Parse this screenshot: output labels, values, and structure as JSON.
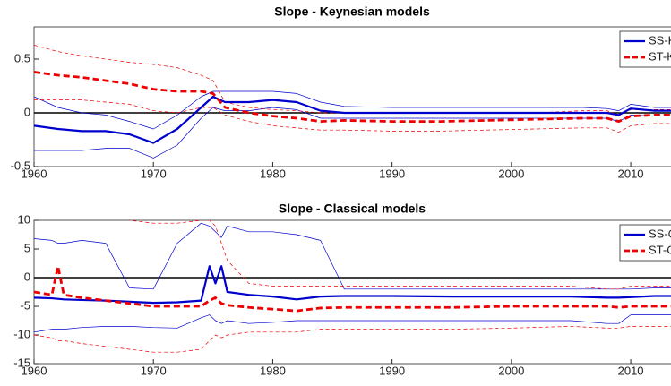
{
  "chart_data": [
    {
      "type": "line",
      "title": "Slope - Keynesian models",
      "x": [
        1960,
        1962,
        1964,
        1966,
        1968,
        1970,
        1972,
        1974,
        1975,
        1976,
        1978,
        1980,
        1982,
        1984,
        1986,
        1990,
        1994,
        1998,
        2002,
        2006,
        2008,
        2009,
        2010,
        2012,
        2014,
        2016
      ],
      "series": [
        {
          "color": "#0000cc",
          "linewidth": 0.7,
          "dashed": false,
          "values": [
            0.15,
            0.05,
            0.0,
            -0.02,
            -0.08,
            -0.15,
            -0.02,
            0.15,
            0.2,
            0.2,
            0.2,
            0.2,
            0.18,
            0.1,
            0.06,
            0.05,
            0.05,
            0.05,
            0.05,
            0.05,
            0.04,
            0.02,
            0.08,
            0.05,
            0.05,
            0.05
          ]
        },
        {
          "color": "#0000cc",
          "linewidth": 0.7,
          "dashed": false,
          "values": [
            -0.35,
            -0.35,
            -0.35,
            -0.33,
            -0.33,
            -0.42,
            -0.3,
            -0.05,
            0.05,
            0.02,
            0.02,
            0.05,
            0.03,
            -0.05,
            -0.05,
            -0.05,
            -0.05,
            -0.05,
            -0.05,
            -0.05,
            -0.05,
            -0.08,
            -0.02,
            -0.03,
            -0.03,
            -0.03
          ]
        },
        {
          "color": "#ee0000",
          "linewidth": 0.7,
          "dashed": true,
          "values": [
            0.63,
            0.57,
            0.53,
            0.5,
            0.47,
            0.45,
            0.42,
            0.35,
            0.3,
            0.1,
            0.05,
            0.03,
            0.02,
            0.0,
            0.0,
            0.0,
            0.0,
            0.0,
            0.0,
            0.02,
            0.02,
            -0.02,
            0.03,
            0.03,
            0.03,
            0.03
          ]
        },
        {
          "color": "#ee0000",
          "linewidth": 0.7,
          "dashed": true,
          "values": [
            0.12,
            0.12,
            0.12,
            0.1,
            0.08,
            0.02,
            0.0,
            0.05,
            0.05,
            -0.02,
            -0.08,
            -0.12,
            -0.14,
            -0.16,
            -0.16,
            -0.17,
            -0.17,
            -0.16,
            -0.15,
            -0.14,
            -0.14,
            -0.18,
            -0.12,
            -0.1,
            -0.1,
            -0.1
          ]
        },
        {
          "name": "SS-K",
          "color": "#0000cc",
          "linewidth": 2.2,
          "dashed": false,
          "values": [
            -0.12,
            -0.15,
            -0.17,
            -0.17,
            -0.2,
            -0.28,
            -0.15,
            0.05,
            0.15,
            0.1,
            0.1,
            0.12,
            0.1,
            0.02,
            0.0,
            0.0,
            0.0,
            0.0,
            0.0,
            0.0,
            0.0,
            -0.02,
            0.04,
            0.02,
            0.02,
            0.02
          ]
        },
        {
          "name": "ST-K",
          "color": "#ee0000",
          "linewidth": 2.8,
          "dashed": true,
          "values": [
            0.38,
            0.35,
            0.33,
            0.3,
            0.27,
            0.22,
            0.2,
            0.2,
            0.18,
            0.05,
            0.0,
            -0.03,
            -0.05,
            -0.08,
            -0.07,
            -0.08,
            -0.08,
            -0.07,
            -0.06,
            -0.05,
            -0.05,
            -0.08,
            -0.03,
            -0.02,
            -0.02,
            -0.02
          ]
        }
      ],
      "reference_line": 0,
      "xlim": [
        1960,
        2016
      ],
      "xticks": [
        1960,
        1970,
        1980,
        1990,
        2000,
        2010
      ],
      "ylim": [
        -0.5,
        0.8
      ],
      "yticks": [
        -0.5,
        0,
        0.5
      ],
      "legend": "northeast"
    },
    {
      "type": "line",
      "title": "Slope - Classical models",
      "x": [
        1960,
        1961.5,
        1962,
        1962.5,
        1964,
        1966,
        1968,
        1970,
        1972,
        1974,
        1974.7,
        1975.2,
        1975.7,
        1976.2,
        1978,
        1980,
        1982,
        1984,
        1986,
        1990,
        1995,
        2000,
        2005,
        2008,
        2009,
        2010,
        2012,
        2014,
        2016
      ],
      "series": [
        {
          "color": "#0000cc",
          "linewidth": 0.7,
          "dashed": false,
          "values": [
            6.8,
            6.5,
            6,
            6,
            6.5,
            6,
            -1.8,
            -2,
            6,
            9.5,
            9,
            8,
            7,
            9,
            8,
            8,
            7.5,
            6.5,
            -2,
            -2,
            -2,
            -2,
            -2,
            -2,
            -2,
            -2,
            -1.8,
            -1.8,
            -1.8
          ]
        },
        {
          "color": "#0000cc",
          "linewidth": 0.7,
          "dashed": false,
          "values": [
            -9.5,
            -9,
            -9,
            -9,
            -8.7,
            -8.5,
            -8.5,
            -8.7,
            -8.8,
            -7,
            -6.5,
            -7.5,
            -8,
            -7.5,
            -8,
            -7.8,
            -7.5,
            -7.5,
            -7.5,
            -7.5,
            -7.5,
            -7.5,
            -7.5,
            -8,
            -8,
            -6.5,
            -6.5,
            -6.5,
            -6.5
          ]
        },
        {
          "color": "#ee0000",
          "linewidth": 0.7,
          "dashed": true,
          "values": [
            12,
            12,
            12,
            12,
            12,
            11,
            10,
            9.5,
            9.5,
            10,
            10,
            9,
            6,
            3,
            -1,
            -1.5,
            -1.5,
            -1.5,
            -1.5,
            -1.5,
            -1.5,
            -1.5,
            -1.5,
            -2,
            -2,
            -1.5,
            -1.5,
            -1.5,
            -1.5
          ]
        },
        {
          "color": "#ee0000",
          "linewidth": 0.7,
          "dashed": true,
          "values": [
            -10,
            -10.5,
            -11,
            -11,
            -11.5,
            -12,
            -12.5,
            -13,
            -13,
            -12.5,
            -11,
            -10,
            -10.5,
            -10,
            -9.5,
            -9.5,
            -9.5,
            -9,
            -9,
            -9,
            -9,
            -8.8,
            -8.5,
            -8.8,
            -8.8,
            -8.5,
            -8.5,
            -8.5,
            -8.5
          ]
        },
        {
          "name": "SS-C",
          "color": "#0000cc",
          "linewidth": 2.2,
          "dashed": false,
          "values": [
            -3.5,
            -3.6,
            -3.7,
            -3.8,
            -3.9,
            -4,
            -4.2,
            -4.4,
            -4.3,
            -4,
            2,
            -1,
            2,
            -2.5,
            -3,
            -3.3,
            -3.8,
            -3.3,
            -3.2,
            -3.2,
            -3.3,
            -3.3,
            -3.3,
            -3.5,
            -3.5,
            -3.4,
            -3.2,
            -3.2,
            -3.2
          ]
        },
        {
          "name": "ST-C",
          "color": "#ee0000",
          "linewidth": 2.8,
          "dashed": true,
          "values": [
            -2.5,
            -3,
            2,
            -3,
            -3.5,
            -4,
            -4.5,
            -5,
            -5,
            -5,
            -4,
            -3.5,
            -4.5,
            -4.8,
            -5.2,
            -5.5,
            -5.8,
            -5.3,
            -5.2,
            -5.2,
            -5.2,
            -5,
            -5,
            -5,
            -5.2,
            -5,
            -5,
            -5,
            -5
          ]
        }
      ],
      "reference_line": 0,
      "xlim": [
        1960,
        2016
      ],
      "xticks": [
        1960,
        1970,
        1980,
        1990,
        2000,
        2010
      ],
      "ylim": [
        -15,
        10
      ],
      "yticks": [
        -15,
        -10,
        -5,
        0,
        5,
        10
      ],
      "legend": "northeast"
    }
  ]
}
